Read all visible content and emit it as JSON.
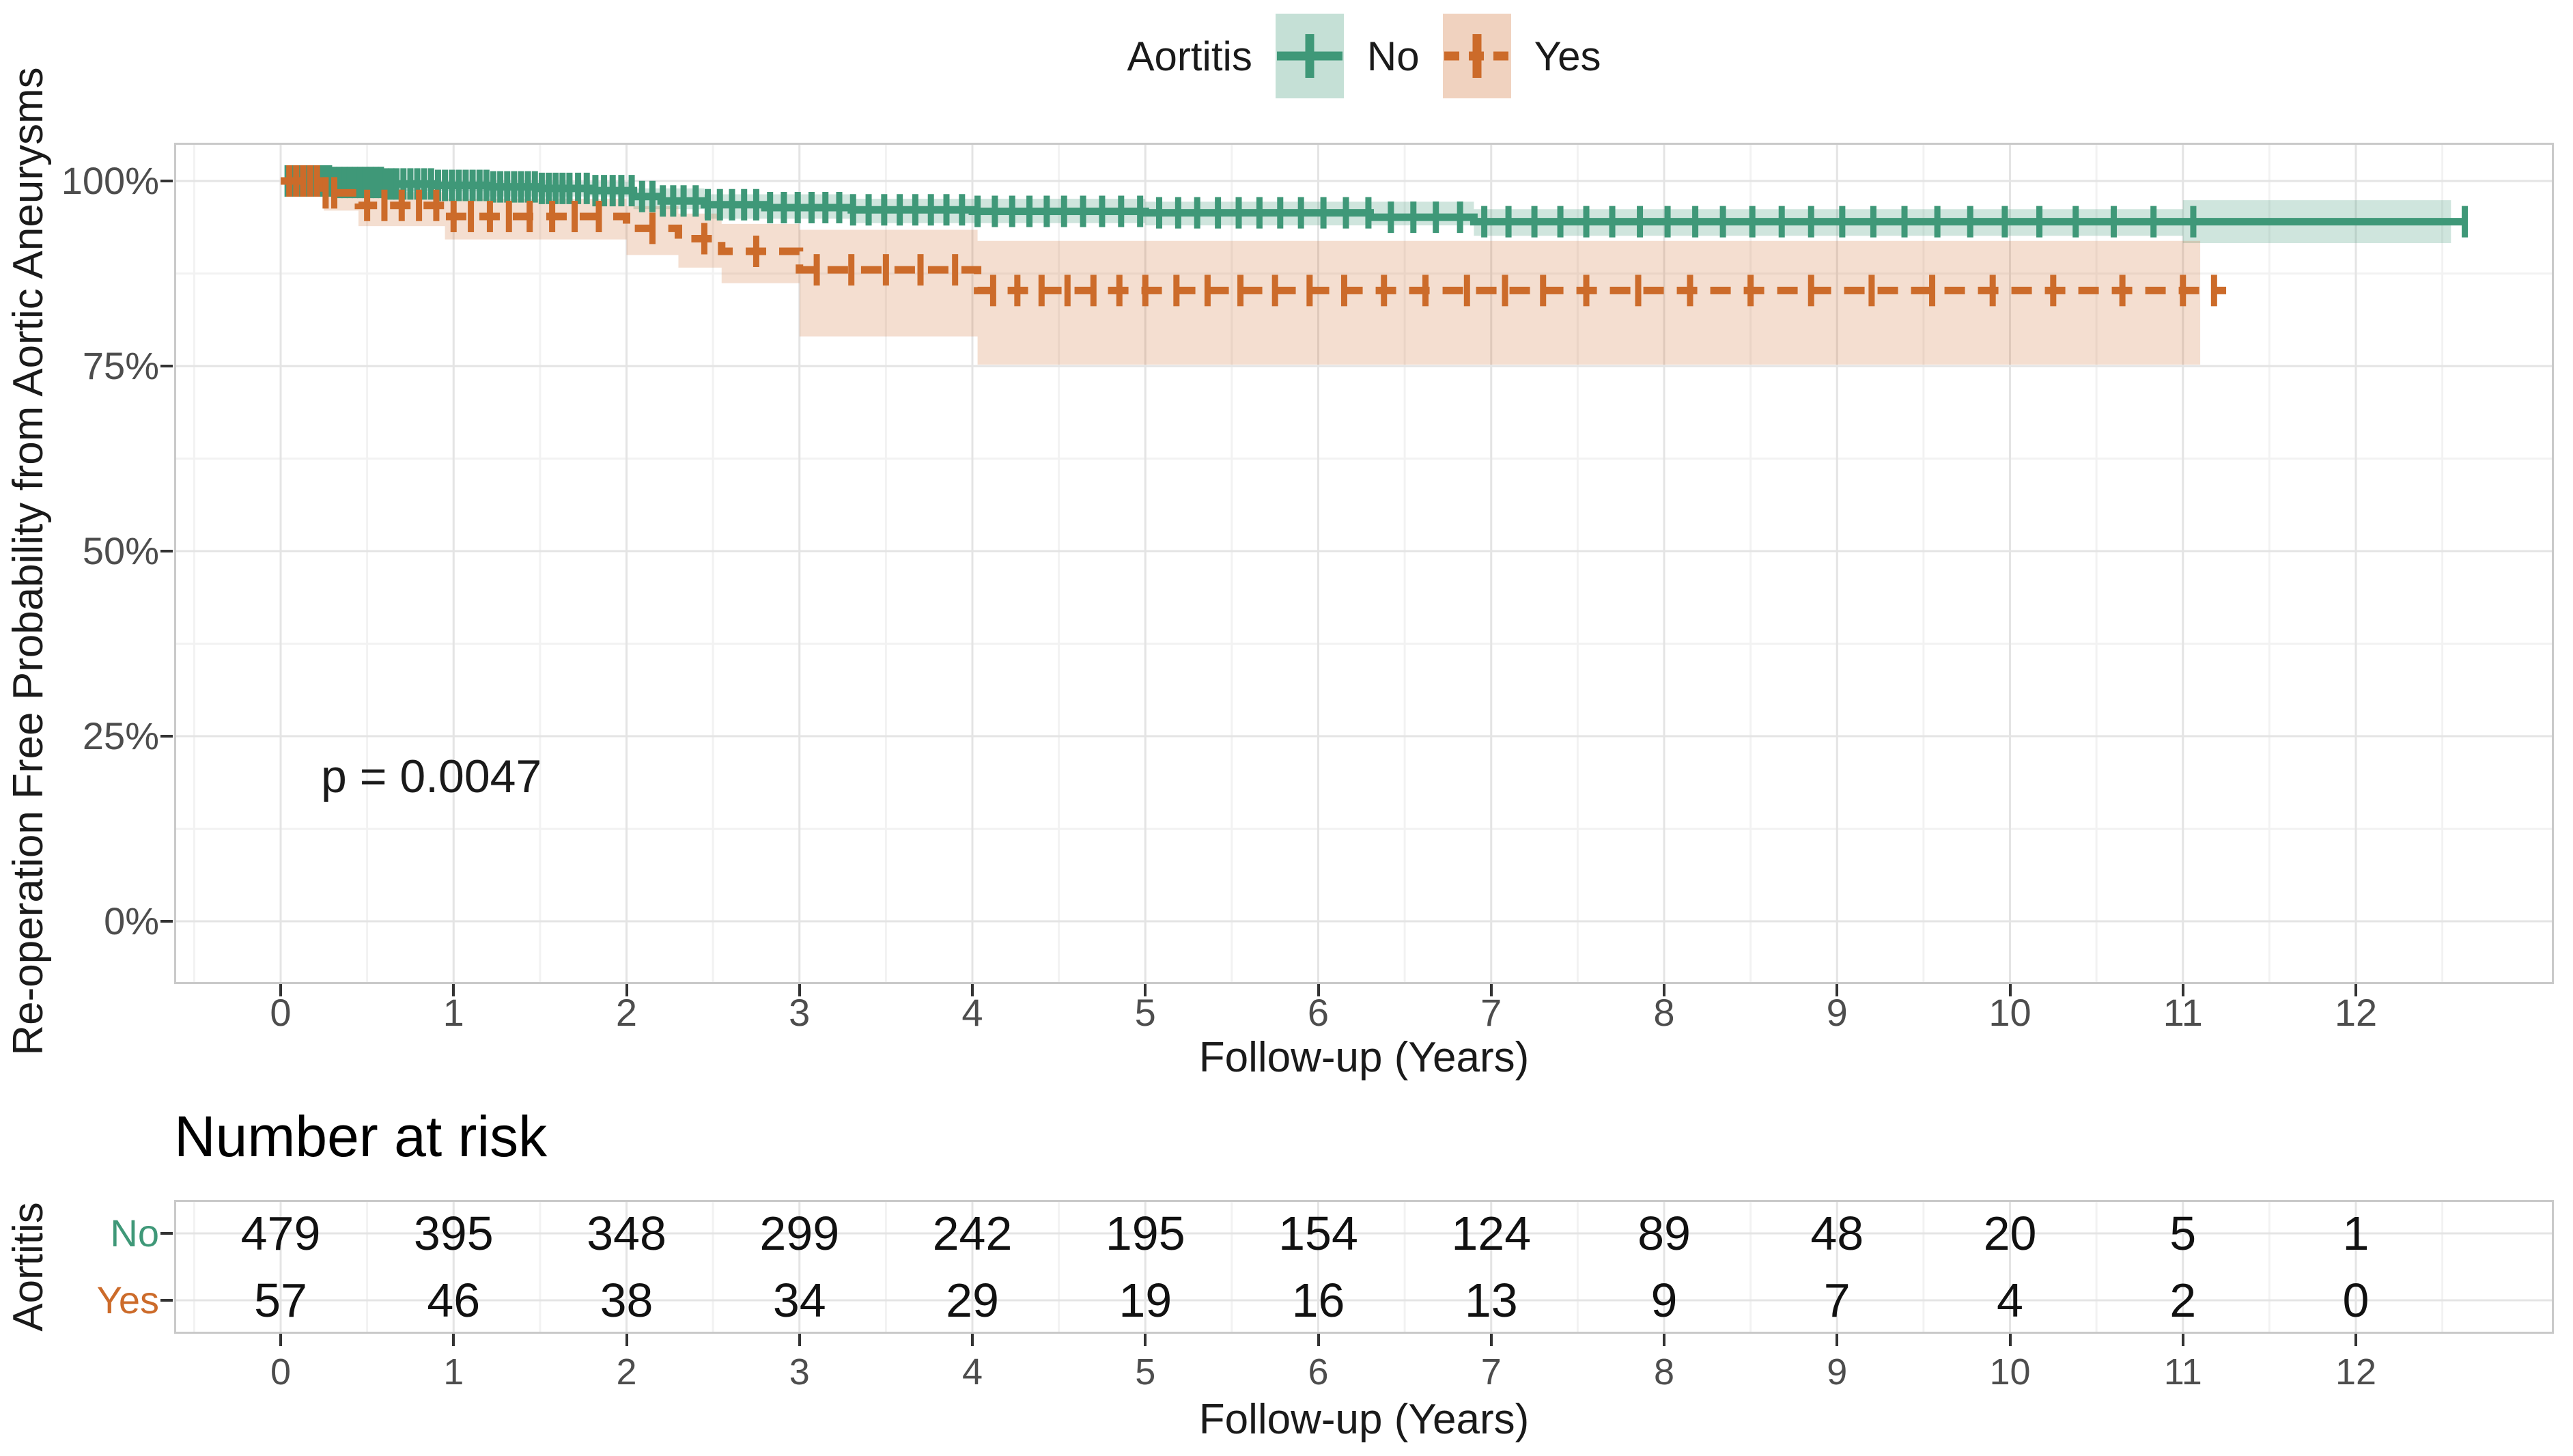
{
  "legend": {
    "title": "Aortitis",
    "items": [
      {
        "label": "No",
        "color": "#3F9878",
        "fill": "rgba(63,152,120,0.30)"
      },
      {
        "label": "Yes",
        "color": "#CC6B2A",
        "fill": "rgba(204,107,42,0.30)"
      }
    ]
  },
  "y_axis": {
    "title": "Re-operation Free Probability from Aortic Aneurysms",
    "ticks": [
      {
        "label": "100%",
        "value": 100
      },
      {
        "label": "75%",
        "value": 75
      },
      {
        "label": "50%",
        "value": 50
      },
      {
        "label": "25%",
        "value": 25
      },
      {
        "label": "0%",
        "value": 0
      }
    ]
  },
  "x_axis": {
    "title": "Follow-up (Years)",
    "ticks": [
      0,
      1,
      2,
      3,
      4,
      5,
      6,
      7,
      8,
      9,
      10,
      11,
      12
    ]
  },
  "annotation": {
    "p_value": "p = 0.0047"
  },
  "risk_table": {
    "heading": "Number at risk",
    "axis_label": "Aortitis",
    "x_title": "Follow-up (Years)",
    "x_ticks": [
      0,
      1,
      2,
      3,
      4,
      5,
      6,
      7,
      8,
      9,
      10,
      11,
      12
    ],
    "rows": [
      {
        "label": "No",
        "color": "#3F9878",
        "values": [
          479,
          395,
          348,
          299,
          242,
          195,
          154,
          124,
          89,
          48,
          20,
          5,
          1
        ]
      },
      {
        "label": "Yes",
        "color": "#CC6B2A",
        "values": [
          57,
          46,
          38,
          34,
          29,
          19,
          16,
          13,
          9,
          7,
          4,
          2,
          0
        ]
      }
    ]
  },
  "colors": {
    "grid_major": "#e4e4e4",
    "grid_minor": "#f2f2f2",
    "panel_border": "#c9c9c9",
    "tick_text": "#4d4d4d",
    "text": "#1a1a1a"
  },
  "chart_data": {
    "type": "line",
    "subtype": "kaplan_meier_step",
    "title": "",
    "xlabel": "Follow-up (Years)",
    "ylabel": "Re-operation Free Probability from Aortic Aneurysms",
    "xlim": [
      -0.6,
      13.2
    ],
    "ylim_pct": [
      -8,
      105
    ],
    "x_major_ticks": [
      0,
      1,
      2,
      3,
      4,
      5,
      6,
      7,
      8,
      9,
      10,
      11,
      12
    ],
    "y_major_ticks_pct": [
      0,
      25,
      50,
      75,
      100
    ],
    "y_minor_ticks_pct": [
      12.5,
      37.5,
      62.5,
      87.5
    ],
    "grid": true,
    "legend_position": "top",
    "p_value_text": "p = 0.0047",
    "series": [
      {
        "name": "No",
        "color": "#3F9878",
        "band_fill": "rgba(63,152,120,0.25)",
        "linestyle": "solid",
        "steps": {
          "t": [
            0,
            0.3,
            0.6,
            0.9,
            1.2,
            1.5,
            1.8,
            2.04,
            2.2,
            2.45,
            2.8,
            3.3,
            4.0,
            5.0,
            6.3,
            6.9
          ],
          "surv": [
            100,
            99.8,
            99.6,
            99.4,
            99.2,
            99.0,
            98.7,
            97.9,
            97.3,
            96.8,
            96.4,
            96.1,
            95.9,
            95.7,
            95.1,
            94.5
          ],
          "end": 12.63
        },
        "ci": {
          "t": [
            0,
            0.6,
            1.2,
            2.04,
            2.45,
            3.3,
            5.0,
            6.9,
            11.0
          ],
          "lo": [
            99.5,
            98.6,
            97.9,
            96.2,
            94.9,
            94.3,
            94.0,
            92.6,
            91.6
          ],
          "hi": [
            100,
            100,
            99.9,
            99.0,
            98.2,
            97.6,
            97.2,
            96.2,
            97.4
          ],
          "end": 12.55
        },
        "censor_times": [
          0.04,
          0.07,
          0.1,
          0.13,
          0.16,
          0.19,
          0.22,
          0.25,
          0.28,
          0.31,
          0.34,
          0.37,
          0.4,
          0.43,
          0.46,
          0.49,
          0.52,
          0.55,
          0.58,
          0.61,
          0.64,
          0.67,
          0.71,
          0.75,
          0.79,
          0.83,
          0.87,
          0.91,
          0.95,
          0.99,
          1.03,
          1.07,
          1.11,
          1.15,
          1.19,
          1.23,
          1.27,
          1.31,
          1.35,
          1.39,
          1.43,
          1.47,
          1.51,
          1.55,
          1.59,
          1.63,
          1.67,
          1.72,
          1.77,
          1.82,
          1.87,
          1.92,
          1.97,
          2.03,
          2.09,
          2.15,
          2.21,
          2.27,
          2.33,
          2.4,
          2.47,
          2.54,
          2.61,
          2.68,
          2.75,
          2.83,
          2.91,
          2.99,
          3.07,
          3.15,
          3.23,
          3.31,
          3.4,
          3.49,
          3.58,
          3.67,
          3.76,
          3.85,
          3.94,
          4.03,
          4.13,
          4.23,
          4.33,
          4.43,
          4.53,
          4.64,
          4.75,
          4.86,
          4.97,
          5.08,
          5.19,
          5.3,
          5.42,
          5.54,
          5.66,
          5.78,
          5.9,
          6.03,
          6.16,
          6.29,
          6.42,
          6.55,
          6.68,
          6.82,
          6.96,
          7.1,
          7.25,
          7.4,
          7.55,
          7.7,
          7.86,
          8.02,
          8.18,
          8.34,
          8.51,
          8.68,
          8.85,
          9.03,
          9.21,
          9.39,
          9.58,
          9.77,
          9.97,
          10.17,
          10.38,
          10.6,
          10.83,
          11.06,
          12.63
        ]
      },
      {
        "name": "Yes",
        "color": "#CC6B2A",
        "band_fill": "rgba(204,107,42,0.22)",
        "linestyle": "dashed",
        "steps": {
          "t": [
            0,
            0.25,
            0.45,
            0.95,
            2.0,
            2.3,
            2.55,
            3.0,
            4.03
          ],
          "surv": [
            100,
            98.4,
            96.7,
            95.2,
            93.6,
            92.2,
            90.5,
            88.0,
            85.2
          ],
          "end": 11.25
        },
        "ci": {
          "t": [
            0.25,
            0.45,
            0.95,
            2.0,
            2.3,
            2.55,
            3.0,
            4.03
          ],
          "lo": [
            96.0,
            93.9,
            92.1,
            90.0,
            88.3,
            86.2,
            79.0,
            75.2
          ],
          "hi": [
            99.6,
            98.5,
            97.6,
            96.6,
            95.6,
            94.2,
            93.4,
            91.9
          ],
          "end": 11.1
        },
        "censor_times": [
          0.05,
          0.09,
          0.13,
          0.17,
          0.21,
          0.26,
          0.31,
          0.5,
          0.6,
          0.7,
          0.8,
          0.9,
          1.0,
          1.1,
          1.21,
          1.32,
          1.44,
          1.57,
          1.7,
          1.84,
          2.15,
          2.45,
          2.75,
          3.1,
          3.3,
          3.5,
          3.7,
          3.9,
          4.12,
          4.26,
          4.4,
          4.55,
          4.7,
          4.85,
          5.0,
          5.18,
          5.36,
          5.55,
          5.75,
          5.95,
          6.15,
          6.38,
          6.62,
          6.86,
          7.08,
          7.3,
          7.55,
          7.85,
          8.15,
          8.5,
          8.85,
          9.2,
          9.55,
          9.9,
          10.25,
          10.65,
          11.0,
          11.18
        ]
      }
    ],
    "risk_table": {
      "categories": [
        0,
        1,
        2,
        3,
        4,
        5,
        6,
        7,
        8,
        9,
        10,
        11,
        12
      ],
      "series": [
        {
          "name": "No",
          "values": [
            479,
            395,
            348,
            299,
            242,
            195,
            154,
            124,
            89,
            48,
            20,
            5,
            1
          ]
        },
        {
          "name": "Yes",
          "values": [
            57,
            46,
            38,
            34,
            29,
            19,
            16,
            13,
            9,
            7,
            4,
            2,
            0
          ]
        }
      ]
    }
  }
}
